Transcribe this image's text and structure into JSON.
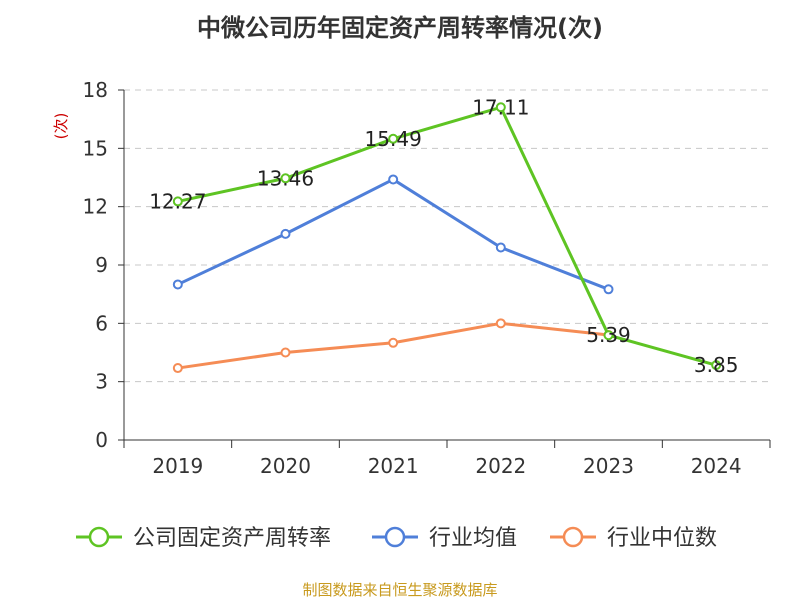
{
  "title": "中微公司历年固定资产周转率情况(次)",
  "source": "制图数据来自恒生聚源数据库",
  "colors": {
    "company": "#5ec423",
    "industry_avg": "#4f7fd9",
    "industry_median": "#f58c55",
    "unit_label": "#cc0000",
    "source": "#c89a1e"
  },
  "chart_data": {
    "type": "line",
    "title": "中微公司历年固定资产周转率情况(次)",
    "xlabel": "",
    "ylabel": "(次)",
    "categories": [
      "2019",
      "2020",
      "2021",
      "2022",
      "2023",
      "2024"
    ],
    "ylim": [
      0,
      18
    ],
    "yticks": [
      0,
      3,
      6,
      9,
      12,
      15,
      18
    ],
    "grid": true,
    "legend_position": "bottom",
    "series": [
      {
        "name": "公司固定资产周转率",
        "values": [
          12.27,
          13.46,
          15.49,
          17.11,
          5.39,
          3.85
        ],
        "labels": [
          "12.27",
          "13.46",
          "15.49",
          "17.11",
          "5.39",
          "3.85"
        ],
        "color": "#5ec423"
      },
      {
        "name": "行业均值",
        "values": [
          8.0,
          10.6,
          13.4,
          9.9,
          7.75,
          null
        ],
        "color": "#4f7fd9"
      },
      {
        "name": "行业中位数",
        "values": [
          3.7,
          4.5,
          5.0,
          6.0,
          5.4,
          null
        ],
        "color": "#f58c55"
      }
    ]
  }
}
